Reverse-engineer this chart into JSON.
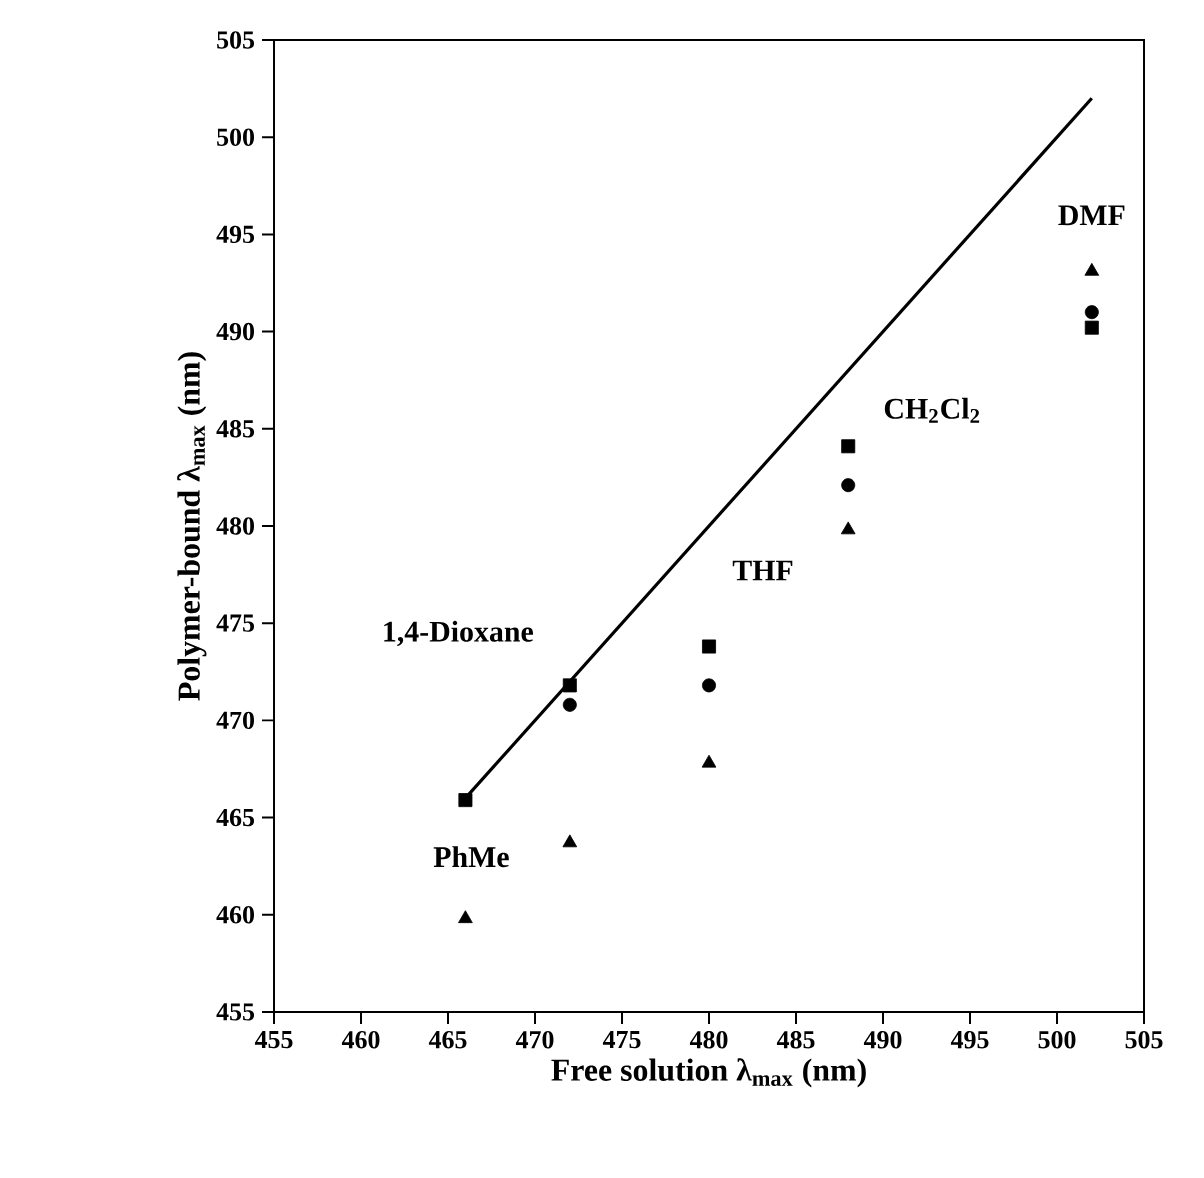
{
  "chart_data": {
    "type": "scatter",
    "xlabel": "Free solution λ$_{max}$ (nm)",
    "ylabel": "Polymer-bound λ$_{max}$ (nm)",
    "xlim": [
      455,
      505
    ],
    "ylim": [
      455,
      505
    ],
    "xticks": [
      455,
      460,
      465,
      470,
      475,
      480,
      485,
      490,
      495,
      500,
      505
    ],
    "yticks": [
      455,
      460,
      465,
      470,
      475,
      480,
      485,
      490,
      495,
      500,
      505
    ],
    "series": [
      {
        "marker": "square",
        "color": "#000000",
        "x": [
          466,
          472,
          480,
          488,
          502
        ],
        "values": [
          465.9,
          471.8,
          473.8,
          484.1,
          490.2
        ]
      },
      {
        "marker": "circle",
        "color": "#000000",
        "x": [
          472,
          480,
          488,
          502
        ],
        "values": [
          470.8,
          471.8,
          482.1,
          491.0
        ]
      },
      {
        "marker": "triangle",
        "color": "#000000",
        "x": [
          466,
          472,
          480,
          488,
          502
        ],
        "values": [
          459.8,
          463.7,
          467.8,
          479.8,
          493.1
        ]
      },
      {
        "type": "line",
        "marker": "none",
        "color": "#000000",
        "x": [
          466,
          502
        ],
        "values": [
          466,
          502
        ]
      }
    ],
    "annotations": [
      {
        "text": "PhMe",
        "x": 466,
        "y": 459.8
      },
      {
        "text": "1,4-Dioxane",
        "x": 472,
        "y": 471.8
      },
      {
        "text": "THF",
        "x": 480,
        "y": 473.8
      },
      {
        "text": "CH$_{2}$Cl$_{2}$",
        "x": 488,
        "y": 484.1
      },
      {
        "text": "DMF",
        "x": 502,
        "y": 493.1
      }
    ]
  }
}
